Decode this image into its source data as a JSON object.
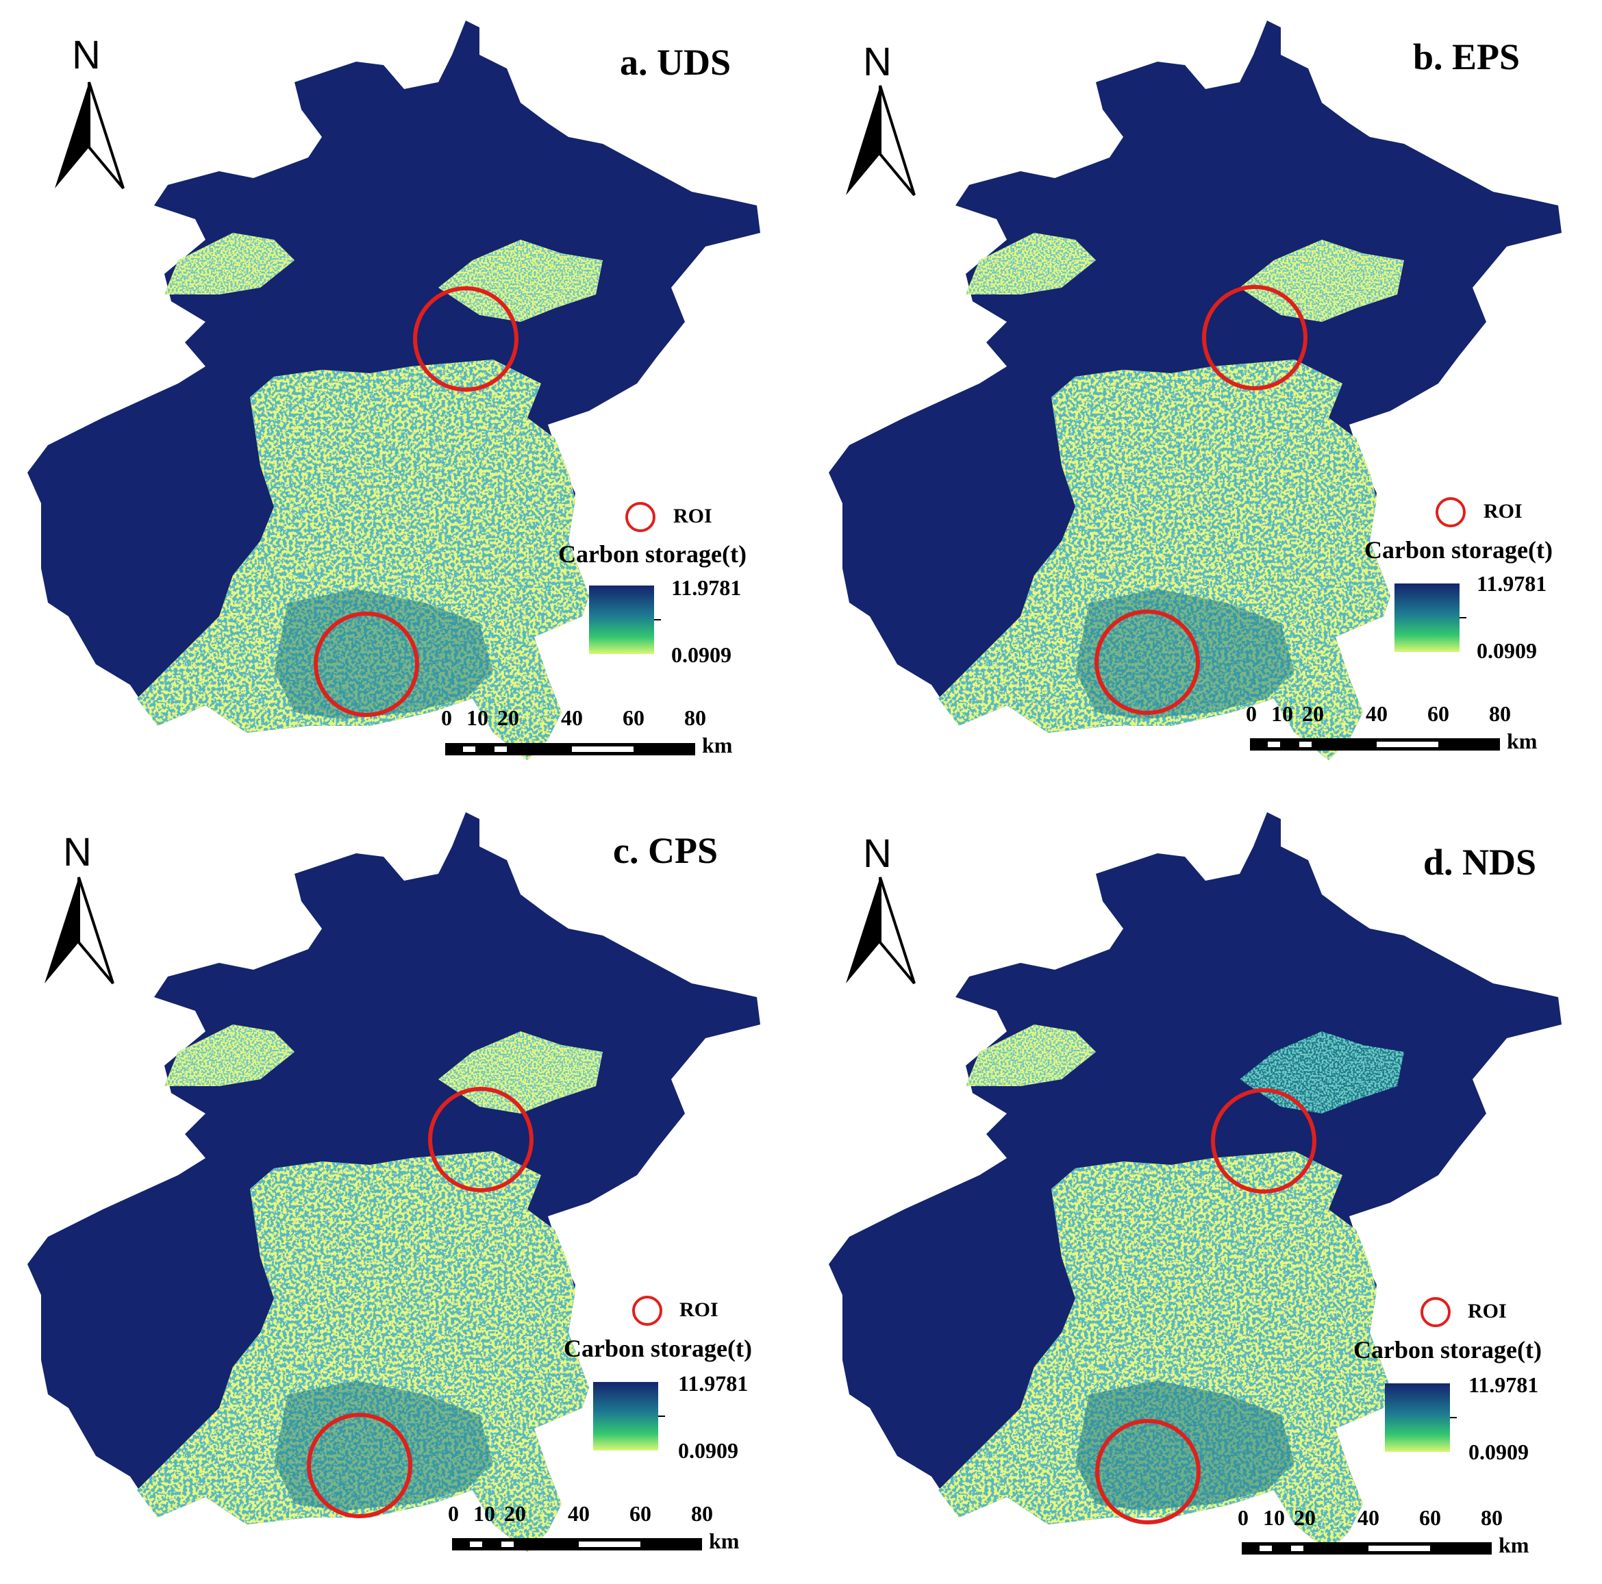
{
  "north_label": "N",
  "legend": {
    "roi_label": "ROI",
    "title": "Carbon storage(t)",
    "max_value": "11.9781",
    "min_value": "0.0909"
  },
  "scale_bar": {
    "ticks": [
      "0",
      "10",
      "20",
      "40",
      "60",
      "80"
    ],
    "unit": "km"
  },
  "colors": {
    "high_carbon": "#14246e",
    "mid_carbon": "#1f7f8f",
    "low_carbon": "#e8f87a",
    "roi_circle": "#e0201c"
  },
  "panels": [
    {
      "title": "a. UDS"
    },
    {
      "title": "b. EPS"
    },
    {
      "title": "c. CPS"
    },
    {
      "title": "d. NDS"
    }
  ]
}
